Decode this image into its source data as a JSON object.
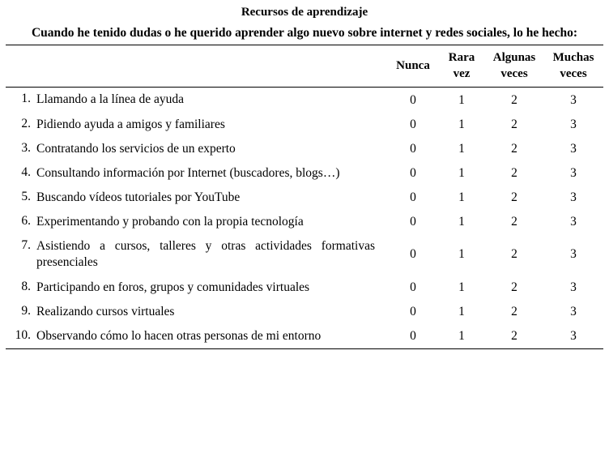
{
  "title": "Recursos de aprendizaje",
  "subtitle": "Cuando he tenido dudas o he querido aprender algo nuevo sobre internet y redes sociales, lo he hecho:",
  "columns": [
    "Nunca",
    "Rara vez",
    "Algunas veces",
    "Muchas veces"
  ],
  "rows": [
    {
      "num": "1.",
      "text": "Llamando a la línea de ayuda",
      "values": [
        "0",
        "1",
        "2",
        "3"
      ]
    },
    {
      "num": "2.",
      "text": "Pidiendo ayuda a amigos y familiares",
      "values": [
        "0",
        "1",
        "2",
        "3"
      ]
    },
    {
      "num": "3.",
      "text": "Contratando los servicios de un experto",
      "values": [
        "0",
        "1",
        "2",
        "3"
      ]
    },
    {
      "num": "4.",
      "text": "Consultando información por Internet (buscadores, blogs…)",
      "values": [
        "0",
        "1",
        "2",
        "3"
      ]
    },
    {
      "num": "5.",
      "text": "Buscando vídeos tutoriales por YouTube",
      "values": [
        "0",
        "1",
        "2",
        "3"
      ]
    },
    {
      "num": "6.",
      "text": "Experimentando y probando con la propia tecnología",
      "values": [
        "0",
        "1",
        "2",
        "3"
      ]
    },
    {
      "num": "7.",
      "text": "Asistiendo a cursos, talleres y otras actividades formativas presenciales",
      "values": [
        "0",
        "1",
        "2",
        "3"
      ]
    },
    {
      "num": "8.",
      "text": "Participando en foros, grupos y comunidades virtuales",
      "values": [
        "0",
        "1",
        "2",
        "3"
      ]
    },
    {
      "num": "9.",
      "text": "Realizando cursos virtuales",
      "values": [
        "0",
        "1",
        "2",
        "3"
      ]
    },
    {
      "num": "10.",
      "text": "Observando cómo lo hacen otras personas de mi entorno",
      "values": [
        "0",
        "1",
        "2",
        "3"
      ]
    }
  ]
}
